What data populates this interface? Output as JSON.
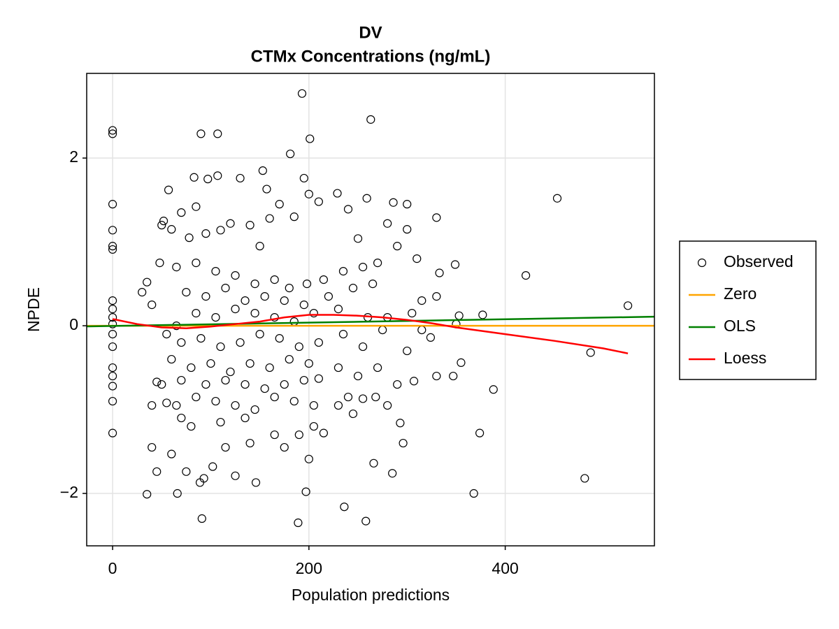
{
  "chart_data": {
    "type": "scatter",
    "title": [
      "DV",
      "CTMx Concentrations (ng/mL)"
    ],
    "xlabel": "Population predictions",
    "ylabel": "NPDE",
    "xlim": [
      -26.4,
      552
    ],
    "ylim": [
      -2.625,
      3.01
    ],
    "xticks": [
      0,
      200,
      400
    ],
    "yticks": [
      {
        "value": -2,
        "label": "−2"
      },
      0,
      2
    ],
    "grid": true,
    "legend": "right",
    "series": [
      {
        "name": "Observed",
        "type": "scatter",
        "color": "#000000",
        "x": [
          0,
          0,
          0,
          0,
          0,
          0,
          0,
          0,
          0,
          0,
          0,
          0,
          0,
          0,
          0,
          0,
          0,
          193,
          263,
          201,
          90,
          107,
          181,
          153,
          83,
          97,
          107,
          130,
          195,
          57,
          157,
          200,
          229,
          259,
          453,
          421,
          525,
          487,
          481,
          388,
          374,
          368,
          355,
          330,
          333,
          349,
          353,
          377,
          350,
          347,
          330,
          324,
          296,
          293,
          285,
          258,
          236,
          189,
          197,
          91,
          35,
          66,
          89,
          45,
          146,
          125,
          93,
          102,
          200,
          266,
          40,
          60,
          75,
          55,
          35,
          30,
          40,
          50,
          52,
          70,
          85,
          60,
          78,
          95,
          110,
          120,
          140,
          160,
          170,
          185,
          210,
          240,
          250,
          280,
          300,
          286,
          300,
          310,
          290,
          270,
          255,
          235,
          215,
          198,
          180,
          165,
          145,
          125,
          105,
          85,
          65,
          48,
          75,
          95,
          115,
          135,
          155,
          175,
          195,
          220,
          245,
          265,
          280,
          305,
          315,
          330,
          260,
          230,
          205,
          185,
          165,
          145,
          125,
          105,
          85,
          65,
          55,
          70,
          90,
          110,
          130,
          150,
          170,
          190,
          210,
          235,
          255,
          275,
          300,
          315,
          60,
          80,
          100,
          120,
          140,
          160,
          180,
          200,
          230,
          270,
          45,
          70,
          95,
          115,
          135,
          155,
          175,
          195,
          210,
          250,
          290,
          307,
          65,
          85,
          105,
          125,
          145,
          165,
          185,
          205,
          240,
          255,
          280,
          80,
          110,
          135,
          165,
          190,
          215,
          230,
          115,
          140,
          175,
          70,
          50,
          40,
          205,
          245,
          268,
          150
        ],
        "values": [
          2.33,
          2.29,
          1.45,
          1.14,
          0.95,
          0.91,
          0.3,
          0.2,
          0.1,
          0.02,
          -0.1,
          -0.25,
          -0.5,
          -0.6,
          -0.72,
          -0.9,
          -1.28,
          2.77,
          2.46,
          2.23,
          2.29,
          2.29,
          2.05,
          1.85,
          1.77,
          1.75,
          1.79,
          1.76,
          1.76,
          1.62,
          1.63,
          1.57,
          1.58,
          1.52,
          1.52,
          0.6,
          0.24,
          -0.32,
          -1.82,
          -0.76,
          -1.28,
          -2.0,
          -0.44,
          1.29,
          0.63,
          0.73,
          0.12,
          0.13,
          0.02,
          -0.6,
          -0.6,
          -0.14,
          -1.4,
          -1.16,
          -1.76,
          -2.33,
          -2.16,
          -2.35,
          -1.98,
          -2.3,
          -2.01,
          -2.0,
          -1.87,
          -1.74,
          -1.87,
          -1.79,
          -1.82,
          -1.68,
          -1.59,
          -1.64,
          -1.45,
          -1.53,
          -1.74,
          -0.92,
          0.52,
          0.4,
          0.25,
          1.2,
          1.25,
          1.35,
          1.42,
          1.15,
          1.05,
          1.1,
          1.14,
          1.22,
          1.2,
          1.28,
          1.45,
          1.3,
          1.48,
          1.39,
          1.04,
          1.22,
          1.15,
          1.47,
          1.45,
          0.8,
          0.95,
          0.75,
          0.7,
          0.65,
          0.55,
          0.5,
          0.45,
          0.55,
          0.5,
          0.6,
          0.65,
          0.75,
          0.7,
          0.75,
          0.4,
          0.35,
          0.45,
          0.3,
          0.35,
          0.3,
          0.25,
          0.35,
          0.45,
          0.5,
          0.1,
          0.15,
          0.3,
          0.35,
          0.1,
          0.2,
          0.15,
          0.05,
          0.1,
          0.15,
          0.2,
          0.1,
          0.15,
          0.0,
          -0.1,
          -0.2,
          -0.15,
          -0.25,
          -0.2,
          -0.1,
          -0.15,
          -0.25,
          -0.2,
          -0.1,
          -0.25,
          -0.05,
          -0.3,
          -0.05,
          -0.4,
          -0.5,
          -0.45,
          -0.55,
          -0.45,
          -0.5,
          -0.4,
          -0.45,
          -0.5,
          -0.5,
          -0.67,
          -0.65,
          -0.7,
          -0.65,
          -0.7,
          -0.75,
          -0.7,
          -0.65,
          -0.63,
          -0.6,
          -0.7,
          -0.66,
          -0.95,
          -0.85,
          -0.9,
          -0.95,
          -1.0,
          -0.85,
          -0.9,
          -0.95,
          -0.85,
          -0.87,
          -0.95,
          -1.2,
          -1.15,
          -1.1,
          -1.3,
          -1.3,
          -1.28,
          -0.95,
          -1.45,
          -1.4,
          -1.45,
          -1.1,
          -0.7,
          -0.95,
          -1.2,
          -1.05,
          -0.85,
          0.95
        ]
      },
      {
        "name": "Zero",
        "type": "line",
        "color": "#ffa500",
        "x": [
          -26.4,
          552
        ],
        "values": [
          0,
          0
        ]
      },
      {
        "name": "OLS",
        "type": "line",
        "color": "#008000",
        "x": [
          -26.4,
          552
        ],
        "values": [
          -0.008,
          0.108
        ]
      },
      {
        "name": "Loess",
        "type": "line",
        "color": "#ff0000",
        "x": [
          0,
          25,
          50,
          75,
          100,
          125,
          150,
          175,
          200,
          225,
          250,
          275,
          300,
          325,
          350,
          400,
          450,
          500,
          525
        ],
        "values": [
          0.08,
          0.02,
          -0.02,
          -0.03,
          -0.01,
          0.02,
          0.05,
          0.1,
          0.13,
          0.13,
          0.12,
          0.1,
          0.07,
          0.03,
          -0.02,
          -0.1,
          -0.18,
          -0.27,
          -0.33
        ]
      }
    ]
  }
}
